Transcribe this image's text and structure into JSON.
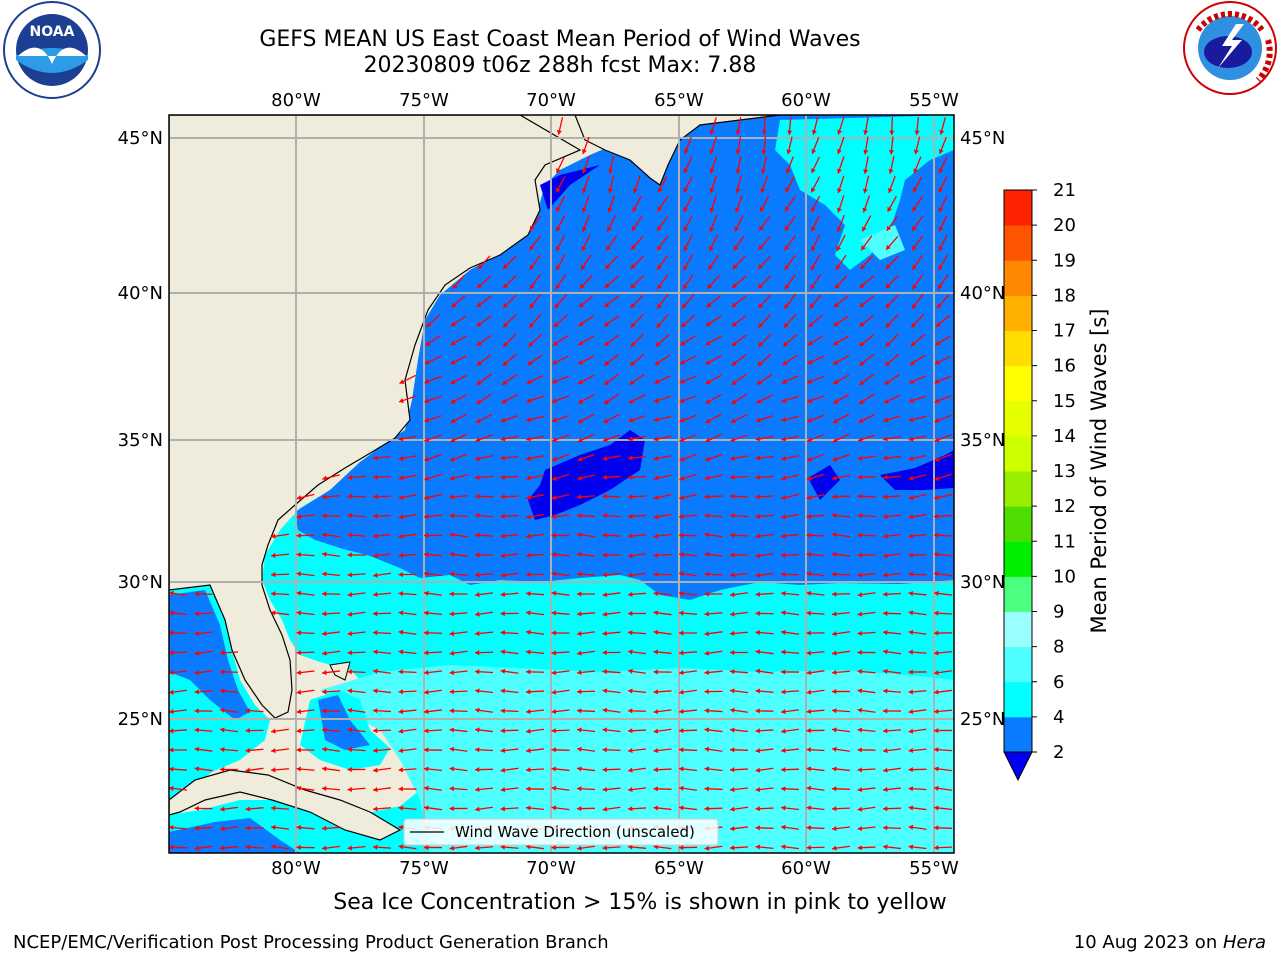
{
  "title": {
    "line1": "GEFS MEAN US East Coast Mean Period of Wind Waves",
    "line2": "20230809 t06z 288h fcst   Max: 7.88"
  },
  "logos": {
    "left": {
      "name": "noaa-logo",
      "text": "NOAA",
      "ring_text": "NATIONAL OCEANIC AND ATMOSPHERIC ADMINISTRATION · U.S. DEPARTMENT OF COMMERCE"
    },
    "right": {
      "name": "nws-logo",
      "ring_text": "NATIONAL WEATHER SERVICE"
    }
  },
  "map": {
    "lon_range": [
      -85,
      -54
    ],
    "lat_range": [
      20.5,
      46
    ],
    "lon_ticks": [
      "80°W",
      "75°W",
      "70°W",
      "65°W",
      "60°W",
      "55°W"
    ],
    "lat_ticks": [
      "45°N",
      "40°N",
      "35°N",
      "30°N",
      "25°N"
    ],
    "legend_label": "Wind Wave Direction (unscaled)",
    "arrow_color": "#ff0000",
    "land_color": "#efecdb",
    "grid_color": "#b0b0b0"
  },
  "colorbar": {
    "label": "Mean Period of Wind Waves [s]",
    "ticks": [
      "2",
      "4",
      "6",
      "8",
      "9",
      "10",
      "11",
      "12",
      "13",
      "14",
      "15",
      "16",
      "17",
      "18",
      "19",
      "20",
      "21"
    ],
    "colors": [
      "#0a7aff",
      "#00ffff",
      "#4dffff",
      "#99ffff",
      "#4dff80",
      "#00ee00",
      "#4ddd00",
      "#99ee00",
      "#ccff00",
      "#e6ff00",
      "#ffff00",
      "#ffdd00",
      "#ffb000",
      "#ff8800",
      "#ff5500",
      "#ff2200"
    ],
    "extend_color": "#0000ee"
  },
  "footer": {
    "ice_note": "Sea Ice Concentration > 15% is shown in pink to yellow",
    "credit": "NCEP/EMC/Verification Post Processing Product Generation Branch",
    "date_prefix": "10 Aug 2023 on ",
    "date_host": "Hera"
  }
}
